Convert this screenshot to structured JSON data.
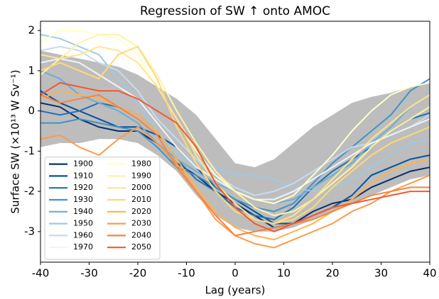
{
  "chart_data": {
    "type": "line",
    "title": "Regression of SW ↑  onto AMOC",
    "x_label": "Lag (years)",
    "y_label": "Surface SW (×10¹³ W Sv⁻¹)",
    "xlim": [
      -40,
      40
    ],
    "ylim": [
      -3.76,
      2.23
    ],
    "xticks": [
      -40,
      -30,
      -20,
      -10,
      0,
      10,
      20,
      30,
      40
    ],
    "yticks": [
      -3,
      -2,
      -1,
      0,
      1,
      2
    ],
    "legend_position": "lower left",
    "x": [
      -40,
      -36,
      -32,
      -28,
      -24,
      -20,
      -16,
      -12,
      -8,
      -4,
      0,
      4,
      8,
      12,
      16,
      20,
      24,
      28,
      32,
      36,
      40
    ],
    "band": {
      "color": "#bdbdbd",
      "upper": [
        1.5,
        1.4,
        1.3,
        1.2,
        1.1,
        0.9,
        0.6,
        0.3,
        -0.1,
        -0.7,
        -1.3,
        -1.4,
        -1.2,
        -0.8,
        -0.4,
        -0.1,
        0.2,
        0.35,
        0.45,
        0.6,
        0.7
      ],
      "lower": [
        -0.9,
        -0.8,
        -0.8,
        -0.7,
        -0.7,
        -0.8,
        -1.1,
        -1.5,
        -2.1,
        -2.6,
        -2.9,
        -3.0,
        -3.0,
        -2.9,
        -2.7,
        -2.5,
        -2.3,
        -2.1,
        -1.9,
        -1.7,
        -1.6
      ]
    },
    "series": [
      {
        "name": "1900",
        "color": "#08306b",
        "values": [
          0.2,
          0.1,
          -0.2,
          -0.4,
          -0.5,
          -0.5,
          -0.8,
          -1.3,
          -1.6,
          -2.0,
          -2.3,
          -2.6,
          -2.9,
          -2.8,
          -2.5,
          -2.3,
          -2.2,
          -1.9,
          -1.7,
          -1.5,
          -1.4
        ]
      },
      {
        "name": "1910",
        "color": "#08519c",
        "values": [
          0.5,
          0.2,
          0.0,
          -0.2,
          -0.4,
          -0.4,
          -0.6,
          -0.9,
          -1.4,
          -1.9,
          -2.2,
          -2.5,
          -2.8,
          -2.8,
          -2.6,
          -2.4,
          -2.1,
          -1.6,
          -1.4,
          -1.2,
          -1.1
        ]
      },
      {
        "name": "1920",
        "color": "#2171b5",
        "values": [
          0.0,
          -0.1,
          0.0,
          0.2,
          0.1,
          -0.1,
          -0.5,
          -1.2,
          -1.7,
          -2.0,
          -2.4,
          -2.6,
          -2.7,
          -2.4,
          -1.9,
          -1.5,
          -1.2,
          -0.9,
          -0.5,
          -0.2,
          -0.05
        ]
      },
      {
        "name": "1930",
        "color": "#4292c6",
        "values": [
          -0.3,
          -0.3,
          -0.2,
          -0.3,
          -0.4,
          -0.5,
          -0.9,
          -1.4,
          -1.6,
          -1.9,
          -2.2,
          -2.4,
          -2.5,
          -2.3,
          -1.8,
          -1.3,
          -0.9,
          -0.5,
          -0.1,
          0.5,
          0.8
        ]
      },
      {
        "name": "1940",
        "color": "#6baed6",
        "values": [
          1.0,
          0.8,
          0.4,
          0.2,
          0.0,
          -0.3,
          -0.8,
          -1.2,
          -1.5,
          -1.8,
          -2.0,
          -2.2,
          -2.3,
          -2.2,
          -1.9,
          -1.6,
          -1.3,
          -0.8,
          -0.4,
          0.1,
          0.4
        ]
      },
      {
        "name": "1950",
        "color": "#9ecae1",
        "values": [
          1.9,
          1.8,
          1.6,
          1.4,
          0.8,
          0.2,
          -0.5,
          -1.1,
          -1.3,
          -1.4,
          -1.6,
          -1.6,
          -1.7,
          -1.9,
          -2.0,
          -1.9,
          -1.7,
          -1.4,
          -1.1,
          -0.8,
          -0.7
        ]
      },
      {
        "name": "1960",
        "color": "#c6dbef",
        "values": [
          1.5,
          1.6,
          1.5,
          1.2,
          1.0,
          0.5,
          -0.2,
          -0.7,
          -1.2,
          -1.6,
          -1.9,
          -2.1,
          -2.0,
          -1.8,
          -1.5,
          -1.2,
          -0.9,
          -0.8,
          -0.6,
          -0.4,
          -0.1
        ]
      },
      {
        "name": "1970",
        "color": "#eef4fb",
        "values": [
          1.2,
          1.3,
          1.2,
          0.9,
          0.6,
          0.3,
          -0.3,
          -0.9,
          -1.4,
          -1.7,
          -2.0,
          -2.2,
          -2.2,
          -2.0,
          -1.7,
          -1.4,
          -1.1,
          -0.8,
          -0.6,
          -0.4,
          -0.2
        ]
      },
      {
        "name": "1980",
        "color": "#ffffcc",
        "values": [
          1.7,
          2.0,
          2.0,
          1.9,
          1.8,
          1.4,
          0.6,
          -0.2,
          -1.0,
          -1.6,
          -2.0,
          -2.2,
          -2.3,
          -2.1,
          -1.6,
          -1.1,
          -0.5,
          0.0,
          0.4,
          0.6,
          0.7
        ]
      },
      {
        "name": "1990",
        "color": "#fff3a8",
        "values": [
          0.9,
          1.3,
          1.7,
          1.9,
          1.9,
          1.6,
          0.9,
          0.0,
          -0.8,
          -1.5,
          -2.0,
          -2.4,
          -2.6,
          -2.5,
          -2.2,
          -1.8,
          -1.4,
          -0.9,
          -0.5,
          -0.2,
          0.1
        ]
      },
      {
        "name": "2000",
        "color": "#ffe58a",
        "values": [
          1.4,
          1.3,
          1.4,
          1.6,
          1.5,
          1.2,
          0.6,
          -0.2,
          -1.1,
          -1.8,
          -2.3,
          -2.7,
          -2.8,
          -2.6,
          -2.2,
          -1.7,
          -1.2,
          -0.7,
          -0.3,
          0.1,
          0.4
        ]
      },
      {
        "name": "2010",
        "color": "#fed976",
        "values": [
          1.0,
          1.2,
          1.0,
          0.8,
          1.4,
          1.6,
          0.8,
          -0.4,
          -1.3,
          -2.0,
          -2.5,
          -2.7,
          -2.8,
          -2.7,
          -2.4,
          -1.9,
          -1.5,
          -1.1,
          -0.8,
          -0.6,
          -0.4
        ]
      },
      {
        "name": "2020",
        "color": "#feb24c",
        "values": [
          0.3,
          0.5,
          0.4,
          0.3,
          0.1,
          -0.1,
          -0.5,
          -1.2,
          -1.9,
          -2.5,
          -2.9,
          -3.1,
          -3.2,
          -3.0,
          -2.8,
          -2.5,
          -2.2,
          -1.8,
          -1.5,
          -1.3,
          -1.2
        ]
      },
      {
        "name": "2030",
        "color": "#fd9a48",
        "values": [
          -0.7,
          -0.6,
          -0.9,
          -1.1,
          -0.7,
          -0.4,
          -0.8,
          -1.3,
          -2.0,
          -2.7,
          -3.1,
          -3.3,
          -3.4,
          -3.2,
          -3.0,
          -2.8,
          -2.5,
          -2.3,
          -2.0,
          -1.8,
          -1.6
        ]
      },
      {
        "name": "2040",
        "color": "#fc8239",
        "values": [
          0.4,
          0.2,
          0.3,
          0.4,
          0.1,
          -0.2,
          -0.6,
          -1.4,
          -2.0,
          -2.6,
          -3.1,
          -3.0,
          -2.9,
          -2.8,
          -2.7,
          -2.5,
          -2.3,
          -2.1,
          -2.0,
          -1.9,
          -1.9
        ]
      },
      {
        "name": "2050",
        "color": "#f3582e",
        "values": [
          0.4,
          0.7,
          0.6,
          0.5,
          0.5,
          0.3,
          0.0,
          -0.3,
          -0.9,
          -1.8,
          -2.4,
          -2.8,
          -3.0,
          -2.8,
          -2.6,
          -2.4,
          -2.3,
          -2.2,
          -2.1,
          -2.0,
          -2.0
        ]
      }
    ]
  }
}
